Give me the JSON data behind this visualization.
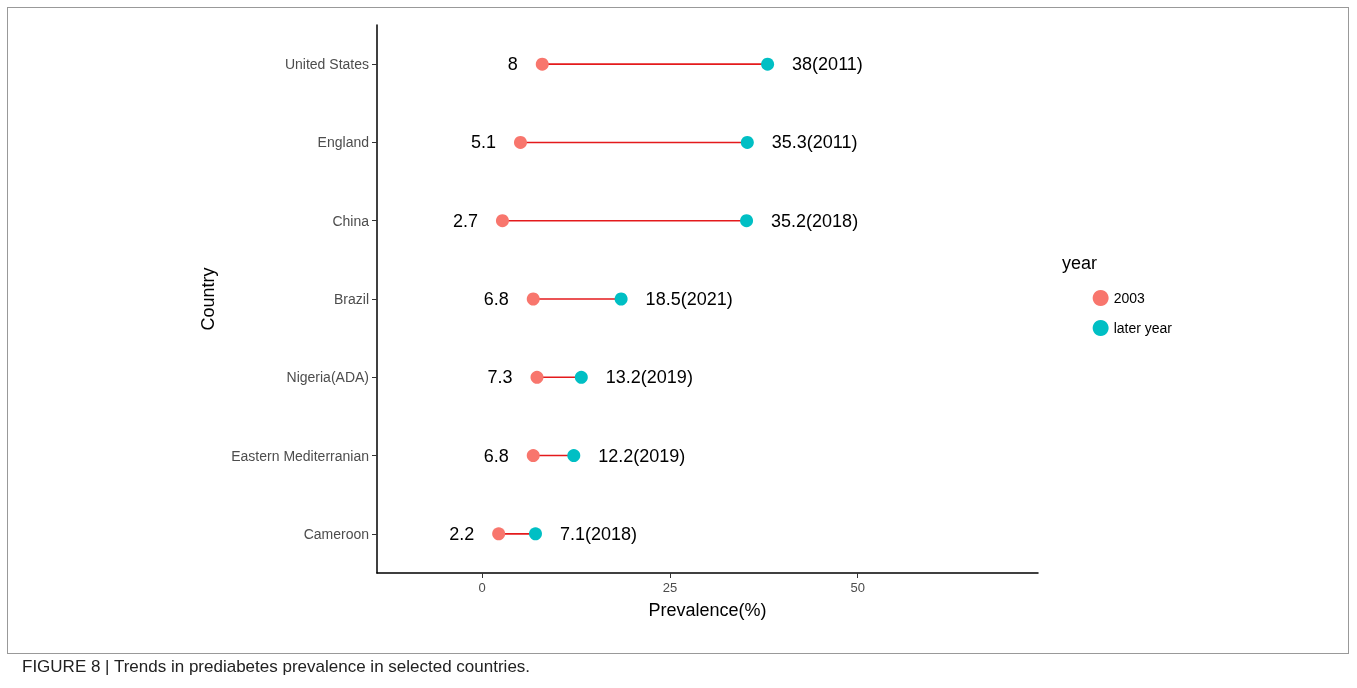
{
  "chart_data": {
    "type": "scatter",
    "orientation": "horizontal",
    "categories": [
      "United States",
      "England",
      "China",
      "Brazil",
      "Nigeria(ADA)",
      "Eastern Mediterranian",
      "Cameroon"
    ],
    "series": [
      {
        "name": "2003",
        "color": "#f8766d",
        "values": [
          8,
          5.1,
          2.7,
          6.8,
          7.3,
          6.8,
          2.2
        ],
        "value_labels": [
          "8",
          "5.1",
          "2.7",
          "6.8",
          "7.3",
          "6.8",
          "2.2"
        ]
      },
      {
        "name": "later year",
        "color": "#00bfc4",
        "values": [
          38,
          35.3,
          35.2,
          18.5,
          13.2,
          12.2,
          7.1
        ],
        "value_labels": [
          "38(2011)",
          "35.3(2011)",
          "35.2(2018)",
          "18.5(2021)",
          "13.2(2019)",
          "12.2(2019)",
          "7.1(2018)"
        ]
      }
    ],
    "xlim": [
      -14,
      74
    ],
    "xticks": [
      0,
      25,
      50
    ],
    "xlabel": "Prevalence(%)",
    "ylabel": "Country",
    "legend": "right",
    "legend_title": "year",
    "marker": "circle",
    "grid": false,
    "annotations": [
      "FIGURE 8 | Trends in prediabetes prevalence in selected countries."
    ]
  }
}
